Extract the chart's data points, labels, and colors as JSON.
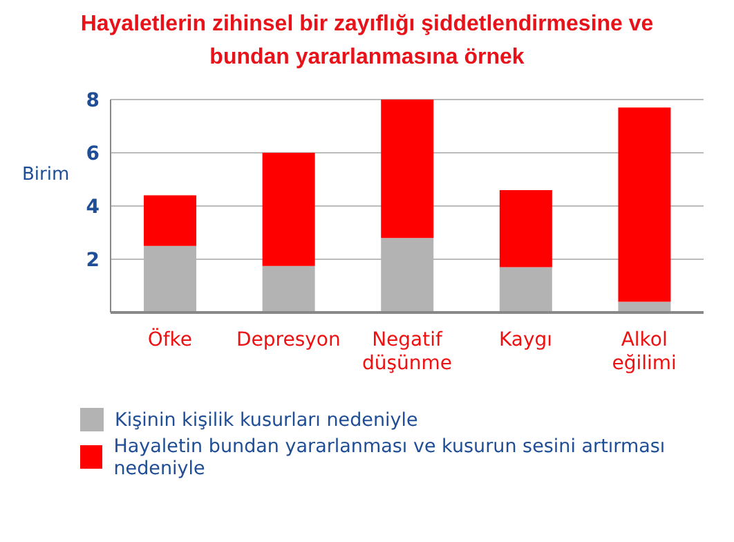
{
  "chart_data": {
    "type": "bar",
    "title": "Hayaletlerin zihinsel bir zayıflığı şiddetlendirmesine ve bundan yararlanmasına örnek",
    "ylabel": "Birim",
    "categories": [
      "Öfke",
      "Depresyon",
      "Negatif düşünme",
      "Kaygı",
      "Alkol eğilimi"
    ],
    "stacked": true,
    "series": [
      {
        "name": "Kişinin kişilik kusurları nedeniyle",
        "color": "#b3b3b3",
        "values": [
          2.5,
          1.75,
          2.8,
          1.7,
          0.4
        ]
      },
      {
        "name": "Hayaletin bundan yararlanması ve kusurun sesini artırması nedeniyle",
        "color": "#ff0000",
        "values": [
          1.9,
          4.25,
          5.2,
          2.9,
          7.3
        ]
      }
    ],
    "ylim": [
      0,
      8
    ],
    "yticks": [
      2,
      4,
      6,
      8
    ],
    "grid": "y",
    "legend": "bottom"
  }
}
